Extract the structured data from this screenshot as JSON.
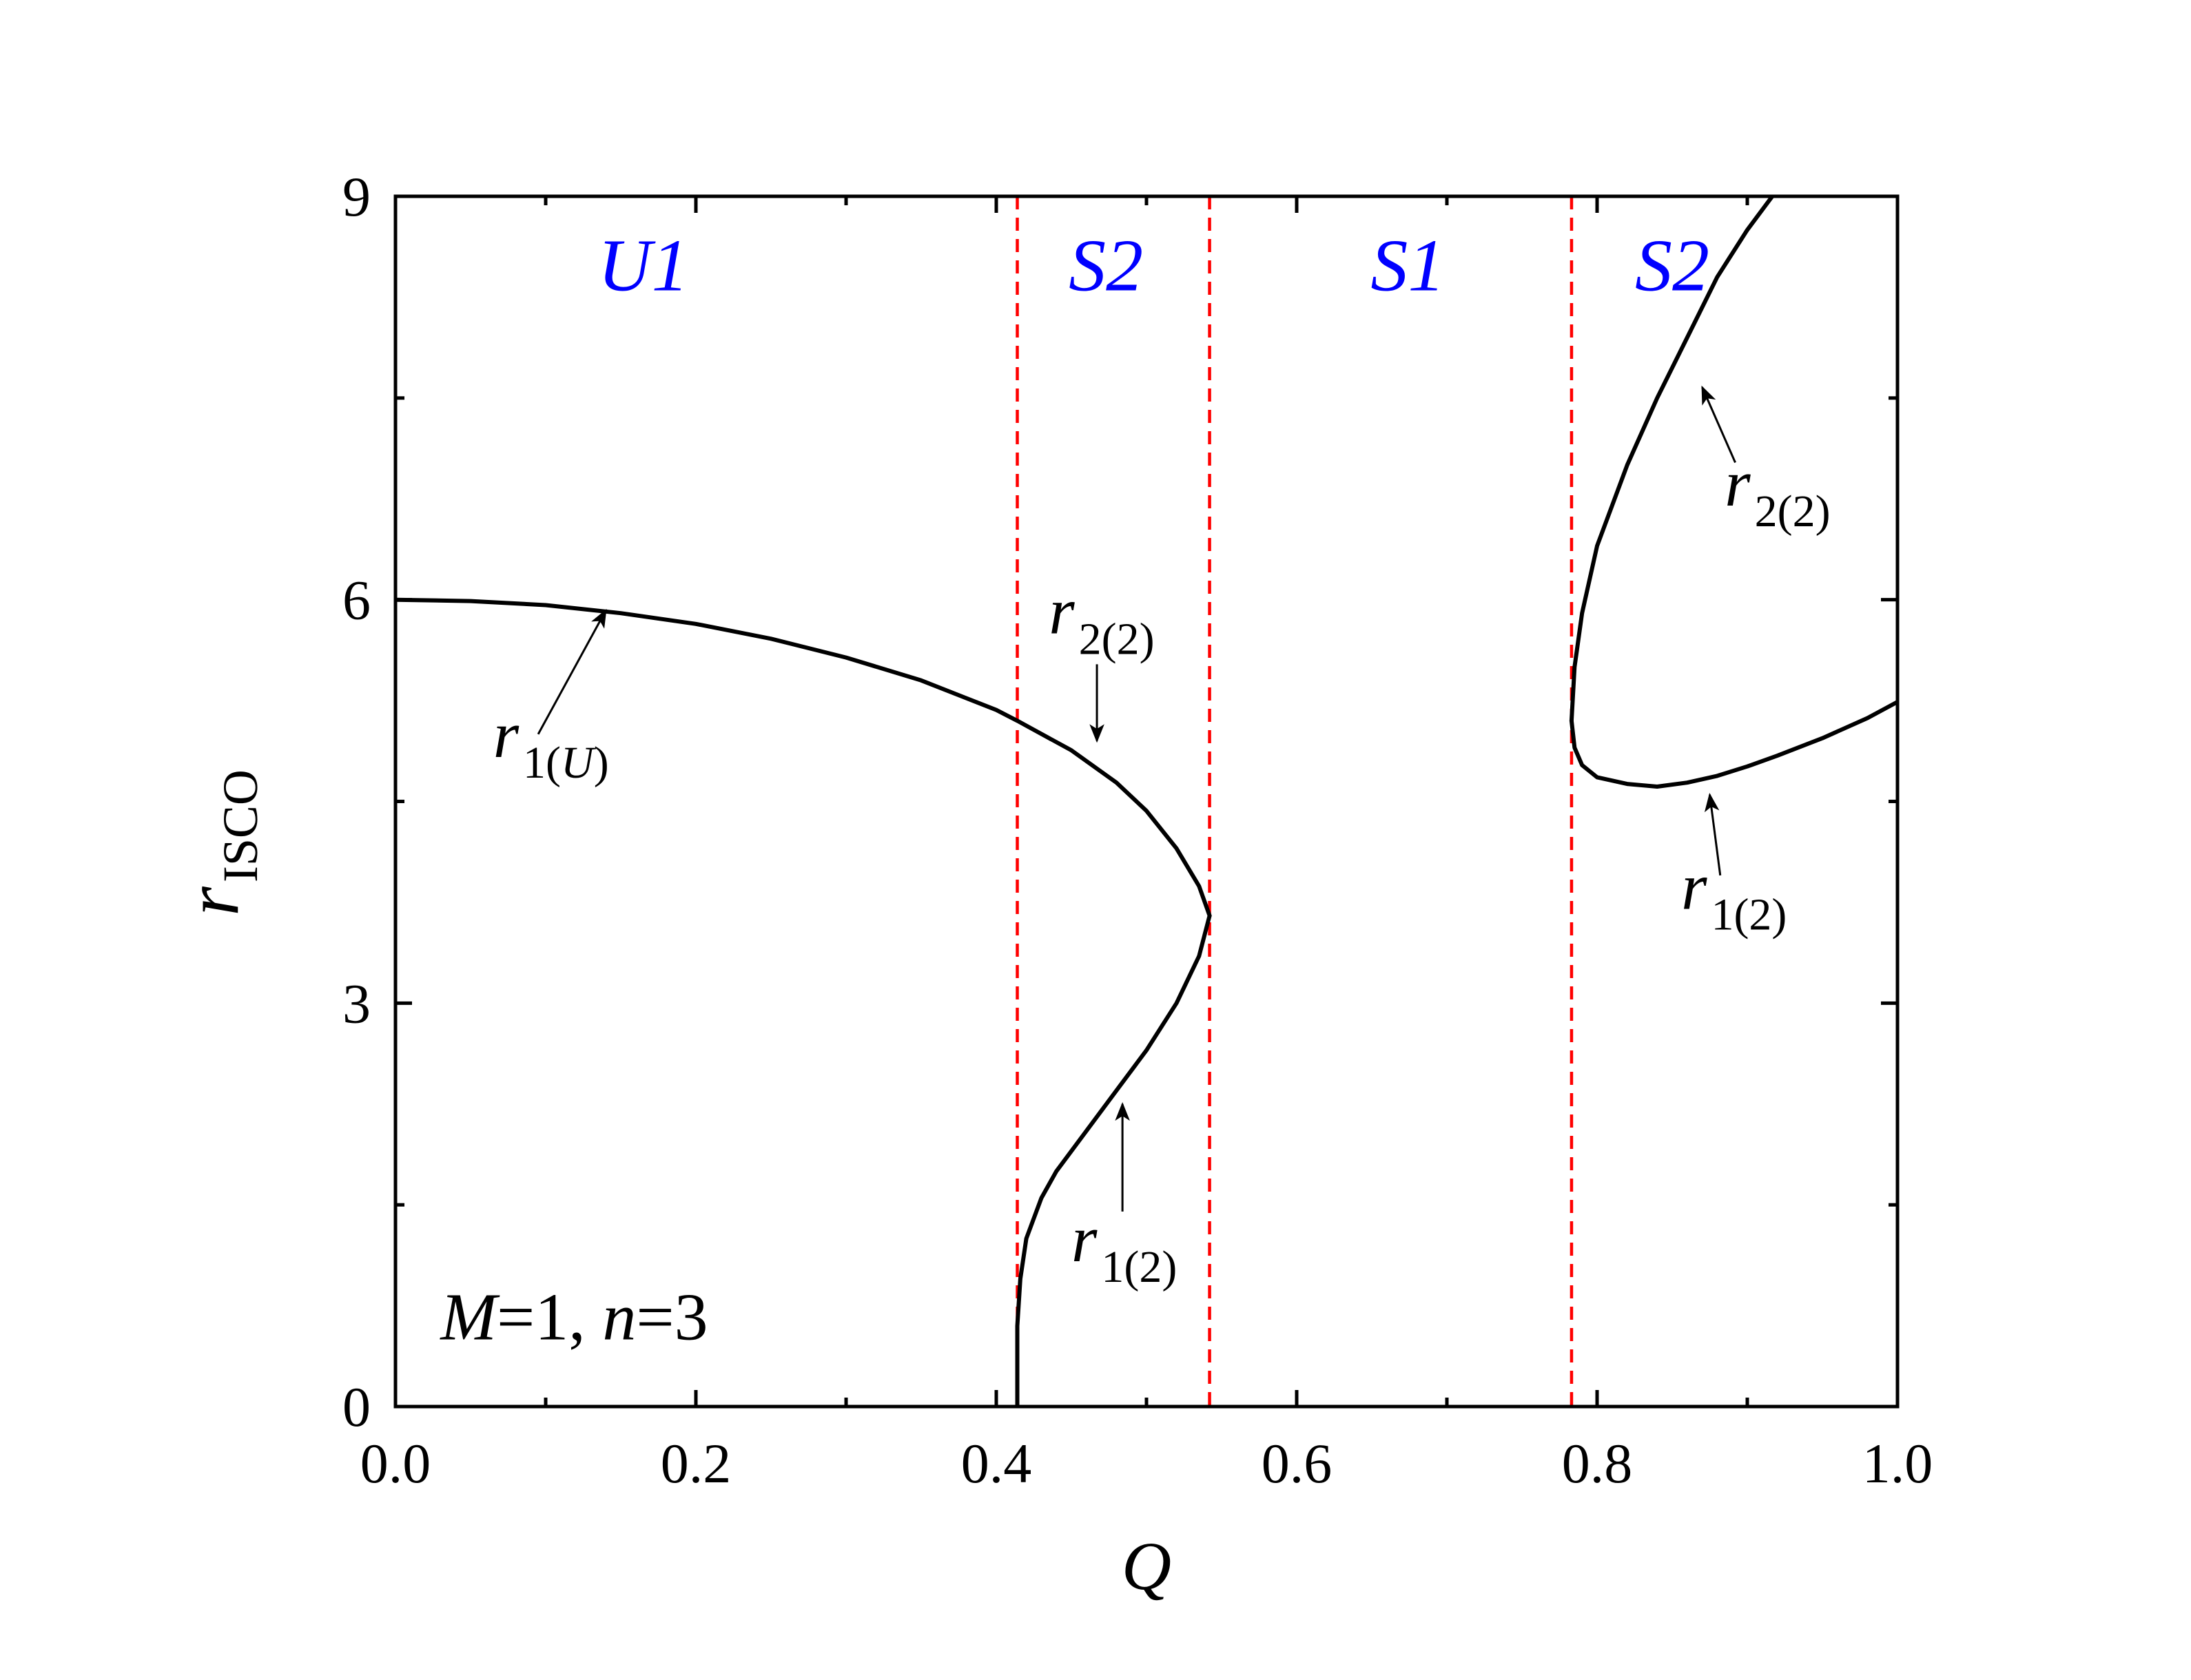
{
  "chart_data": {
    "type": "line",
    "xlabel": "Q",
    "ylabel": {
      "base": "r",
      "sub": "ISCO"
    },
    "xlim": [
      0,
      1
    ],
    "ylim": [
      0,
      9
    ],
    "x_ticks": [
      {
        "value": 0.0,
        "label": "0.0"
      },
      {
        "value": 0.2,
        "label": "0.2"
      },
      {
        "value": 0.4,
        "label": "0.4"
      },
      {
        "value": 0.6,
        "label": "0.6"
      },
      {
        "value": 0.8,
        "label": "0.8"
      },
      {
        "value": 1.0,
        "label": "1.0"
      }
    ],
    "x_minor_ticks": [
      0.1,
      0.3,
      0.5,
      0.7,
      0.9
    ],
    "y_ticks": [
      {
        "value": 0,
        "label": "0"
      },
      {
        "value": 3,
        "label": "3"
      },
      {
        "value": 6,
        "label": "6"
      },
      {
        "value": 9,
        "label": "9"
      }
    ],
    "y_minor_ticks": [
      1.5,
      4.5,
      7.5
    ],
    "grid": false,
    "series": [
      {
        "x": [
          0,
          0.05,
          0.1,
          0.15,
          0.2,
          0.25,
          0.3,
          0.35,
          0.4,
          0.414,
          0.45,
          0.48,
          0.5,
          0.52,
          0.535,
          0.542
        ],
        "y": [
          6.0,
          5.99,
          5.96,
          5.9,
          5.82,
          5.71,
          5.57,
          5.4,
          5.18,
          5.1,
          4.88,
          4.64,
          4.43,
          4.15,
          3.87,
          3.65
        ]
      },
      {
        "x": [
          0.414,
          0.414,
          0.416,
          0.42,
          0.43,
          0.44,
          0.46,
          0.48,
          0.5,
          0.52,
          0.535,
          0.542
        ],
        "y": [
          0,
          0.6,
          0.95,
          1.25,
          1.55,
          1.75,
          2.05,
          2.35,
          2.65,
          3.0,
          3.35,
          3.65
        ]
      },
      {
        "x": [
          0.783,
          0.785,
          0.79,
          0.8,
          0.82,
          0.84,
          0.86,
          0.88,
          0.9,
          0.92,
          0.925
        ],
        "y": [
          5.1,
          5.5,
          5.9,
          6.4,
          7.0,
          7.5,
          7.95,
          8.4,
          8.75,
          9.05,
          9.15
        ]
      },
      {
        "x": [
          0.783,
          0.785,
          0.79,
          0.8,
          0.82,
          0.84,
          0.86,
          0.88,
          0.9,
          0.92,
          0.95,
          0.98,
          1.0
        ],
        "y": [
          5.1,
          4.9,
          4.77,
          4.68,
          4.63,
          4.61,
          4.64,
          4.69,
          4.76,
          4.84,
          4.97,
          5.12,
          5.24
        ]
      }
    ],
    "boundaries": [
      0.414,
      0.542,
      0.783
    ],
    "boundary_color": "#ff0000",
    "line_color": "#000000",
    "region_color": "#0000ff",
    "regions": [
      {
        "label": "U1",
        "x": 0.165,
        "y": 8.3
      },
      {
        "label": "S2",
        "x": 0.473,
        "y": 8.3
      },
      {
        "label": "S1",
        "x": 0.674,
        "y": 8.3
      },
      {
        "label": "S2",
        "x": 0.85,
        "y": 8.3
      }
    ],
    "annotations": [
      {
        "base": "r",
        "sub": "1(U)",
        "sub_italic_part": "U",
        "text_x": 0.065,
        "text_y": 4.83,
        "from": [
          0.095,
          5.0
        ],
        "to": [
          0.14,
          5.92
        ]
      },
      {
        "base": "r",
        "sub": "2(2)",
        "text_x": 0.435,
        "text_y": 5.75,
        "from": [
          0.467,
          5.52
        ],
        "to": [
          0.467,
          4.95
        ]
      },
      {
        "base": "r",
        "sub": "1(2)",
        "text_x": 0.45,
        "text_y": 1.08,
        "from": [
          0.484,
          1.45
        ],
        "to": [
          0.484,
          2.25
        ]
      },
      {
        "base": "r",
        "sub": "2(2)",
        "text_x": 0.885,
        "text_y": 6.7,
        "from": [
          0.892,
          7.02
        ],
        "to": [
          0.87,
          7.58
        ]
      },
      {
        "base": "r",
        "sub": "1(2)",
        "text_x": 0.856,
        "text_y": 3.7,
        "from": [
          0.882,
          3.95
        ],
        "to": [
          0.875,
          4.55
        ]
      }
    ],
    "params_text": {
      "text_x": 0.03,
      "text_y": 0.5,
      "parts": [
        {
          "t": "M",
          "italic": true
        },
        {
          "t": "=1, ",
          "italic": false
        },
        {
          "t": "n",
          "italic": true
        },
        {
          "t": "=3",
          "italic": false
        }
      ]
    }
  }
}
